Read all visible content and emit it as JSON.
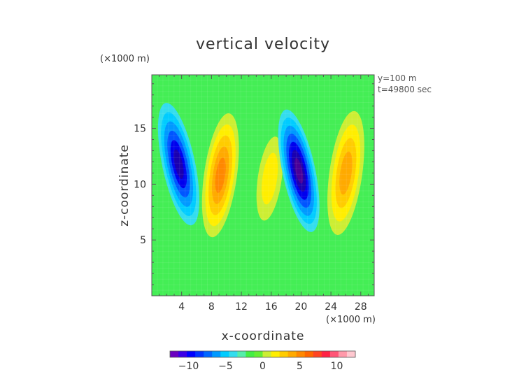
{
  "chart_data": {
    "type": "heatmap",
    "title": "vertical velocity",
    "xlabel": "x-coordinate",
    "ylabel": "z-coordinate",
    "x_unit": "(×1000 m)",
    "y_unit": "(×1000 m)",
    "xlim": [
      0,
      29.8
    ],
    "ylim": [
      0,
      19.8
    ],
    "xticks": [
      4,
      8,
      12,
      16,
      20,
      24,
      28
    ],
    "yticks": [
      5,
      10,
      15
    ],
    "colorbar": {
      "min": -12.5,
      "max": 12.5,
      "ticks": [
        -10,
        -5,
        0,
        5,
        10
      ],
      "colors": [
        "#6a00c0",
        "#3b00e6",
        "#0000ff",
        "#0033ff",
        "#0066ff",
        "#0099ff",
        "#00ccff",
        "#33ddee",
        "#55eeaa",
        "#44ee44",
        "#66ee33",
        "#ccee33",
        "#ffee00",
        "#ffcc00",
        "#ffaa00",
        "#ff8800",
        "#ff6600",
        "#ff4422",
        "#ff2244",
        "#ff5577",
        "#ff99aa",
        "#ffc8d0"
      ]
    },
    "annotations": [
      "y=100 m",
      "t=49800 sec"
    ],
    "features": [
      {
        "x": 3.6,
        "z": 11.8,
        "w": -9,
        "desc": "downdraft"
      },
      {
        "x": 9.2,
        "z": 10.8,
        "w": 8,
        "desc": "updraft"
      },
      {
        "x": 15.8,
        "z": 10.5,
        "w": 3,
        "desc": "weak updraft"
      },
      {
        "x": 19.7,
        "z": 11.2,
        "w": -11,
        "desc": "downdraft"
      },
      {
        "x": 26.0,
        "z": 11.0,
        "w": 7,
        "desc": "updraft"
      }
    ]
  },
  "annotations": {
    "y_position": "y=100 m",
    "time": "t=49800 sec"
  }
}
